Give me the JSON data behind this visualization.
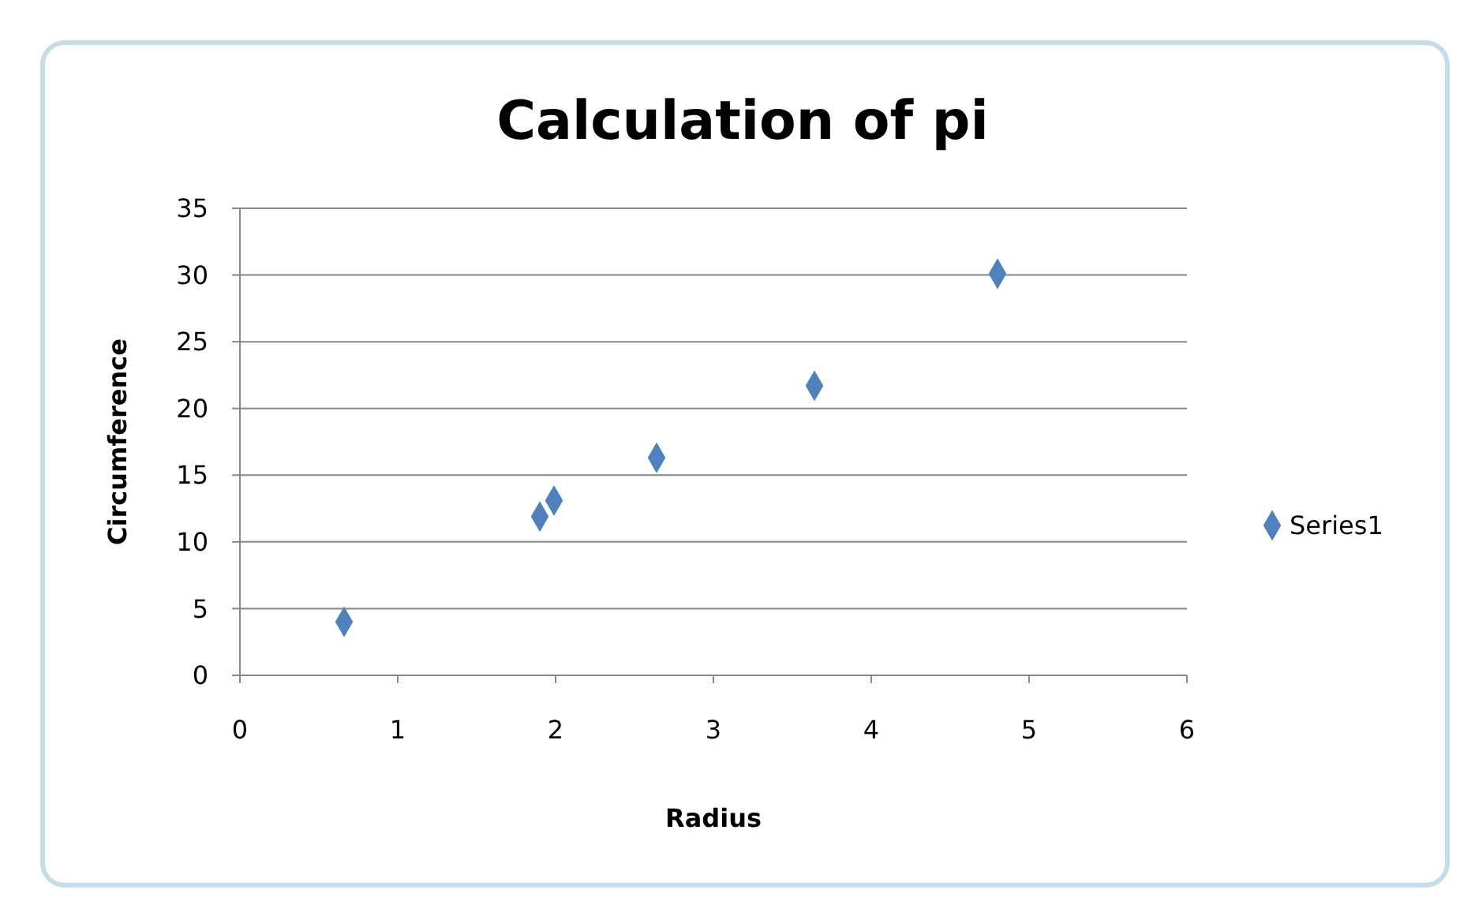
{
  "chart_data": {
    "type": "scatter",
    "title": "Calculation of pi",
    "xlabel": "Radius",
    "ylabel": "Circumference",
    "x": [
      0.66,
      1.9,
      1.99,
      2.64,
      3.64,
      4.8
    ],
    "series": [
      {
        "name": "Series1",
        "color": "#4f81bd",
        "values": [
          4.0,
          11.9,
          13.1,
          16.3,
          21.7,
          30.1
        ]
      }
    ],
    "xlim": [
      0,
      6
    ],
    "xticks": [
      0,
      1,
      2,
      3,
      4,
      5,
      6
    ],
    "ylim": [
      0,
      35
    ],
    "yticks": [
      0,
      5,
      10,
      15,
      20,
      25,
      30,
      35
    ],
    "grid": "y",
    "legend": "right",
    "marker": "diamond"
  }
}
